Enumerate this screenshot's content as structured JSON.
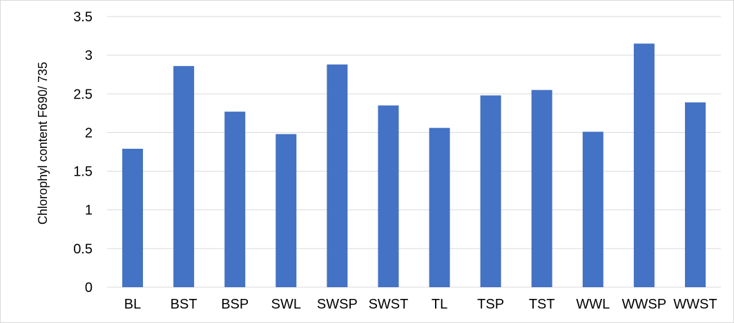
{
  "chart_data": {
    "type": "bar",
    "title": "",
    "xlabel": "",
    "ylabel": "Chlorophyl content F690/ 735",
    "categories": [
      "BL",
      "BST",
      "BSP",
      "SWL",
      "SWSP",
      "SWST",
      "TL",
      "TSP",
      "TST",
      "WWL",
      "WWSP",
      "WWST"
    ],
    "values": [
      1.79,
      2.86,
      2.27,
      1.98,
      2.88,
      2.35,
      2.06,
      2.48,
      2.55,
      2.01,
      3.15,
      2.39
    ],
    "ylim": [
      0,
      3.5
    ],
    "yticks": [
      "0",
      "0.5",
      "1",
      "1.5",
      "2",
      "2.5",
      "3",
      "3.5"
    ],
    "grid": true,
    "bar_color": "#4472c4",
    "grid_color": "#d9d9d9"
  }
}
